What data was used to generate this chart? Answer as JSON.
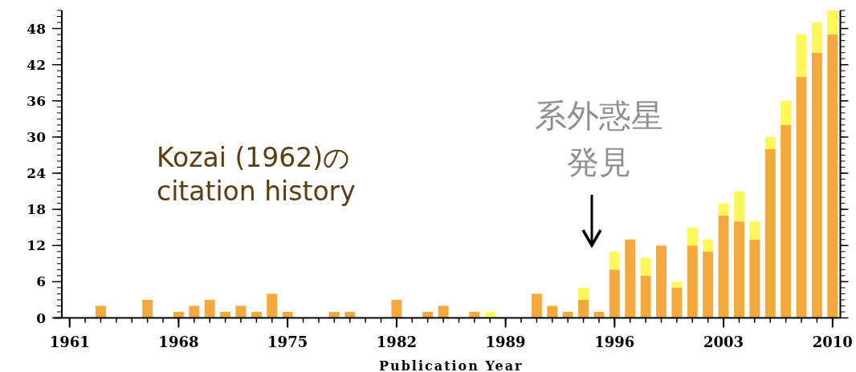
{
  "chart_data": {
    "type": "bar",
    "stacked": true,
    "xlabel": "Publication Year",
    "x": [
      1961,
      1962,
      1963,
      1964,
      1965,
      1966,
      1967,
      1968,
      1969,
      1970,
      1971,
      1972,
      1973,
      1974,
      1975,
      1976,
      1977,
      1978,
      1979,
      1980,
      1981,
      1982,
      1983,
      1984,
      1985,
      1986,
      1987,
      1988,
      1989,
      1990,
      1991,
      1992,
      1993,
      1994,
      1995,
      1996,
      1997,
      1998,
      1999,
      2000,
      2001,
      2002,
      2003,
      2004,
      2005,
      2006,
      2007,
      2008,
      2009,
      2010
    ],
    "series": [
      {
        "color": "#f4a93e",
        "values": [
          0,
          0,
          2,
          0,
          0,
          3,
          0,
          1,
          2,
          3,
          1,
          2,
          1,
          4,
          1,
          0,
          0,
          1,
          1,
          0,
          0,
          3,
          0,
          1,
          2,
          0,
          1,
          0,
          0,
          0,
          4,
          2,
          1,
          3,
          1,
          8,
          13,
          7,
          12,
          5,
          12,
          11,
          17,
          16,
          13,
          28,
          32,
          40,
          44,
          47
        ]
      },
      {
        "color": "#fdf75a",
        "values": [
          0,
          0,
          0,
          0,
          0,
          0,
          0,
          0,
          0,
          0,
          0,
          0,
          0,
          0,
          0,
          0,
          0,
          0,
          0,
          0,
          0,
          0,
          0,
          0,
          0,
          0,
          0,
          1,
          0,
          0,
          0,
          0,
          0,
          2,
          0,
          3,
          0,
          3,
          0,
          1,
          3,
          2,
          2,
          5,
          3,
          2,
          4,
          7,
          5,
          4
        ]
      }
    ],
    "xlim": [
      1960.5,
      2010.5
    ],
    "ylim": [
      0,
      51
    ],
    "xticks": [
      1961,
      1968,
      1975,
      1982,
      1989,
      1996,
      2003,
      2010
    ],
    "yticks": [
      0,
      6,
      12,
      18,
      24,
      30,
      36,
      42,
      48
    ],
    "annotations": [
      "Kozai (1962)の\ncitation history",
      "系外惑星発見"
    ]
  }
}
